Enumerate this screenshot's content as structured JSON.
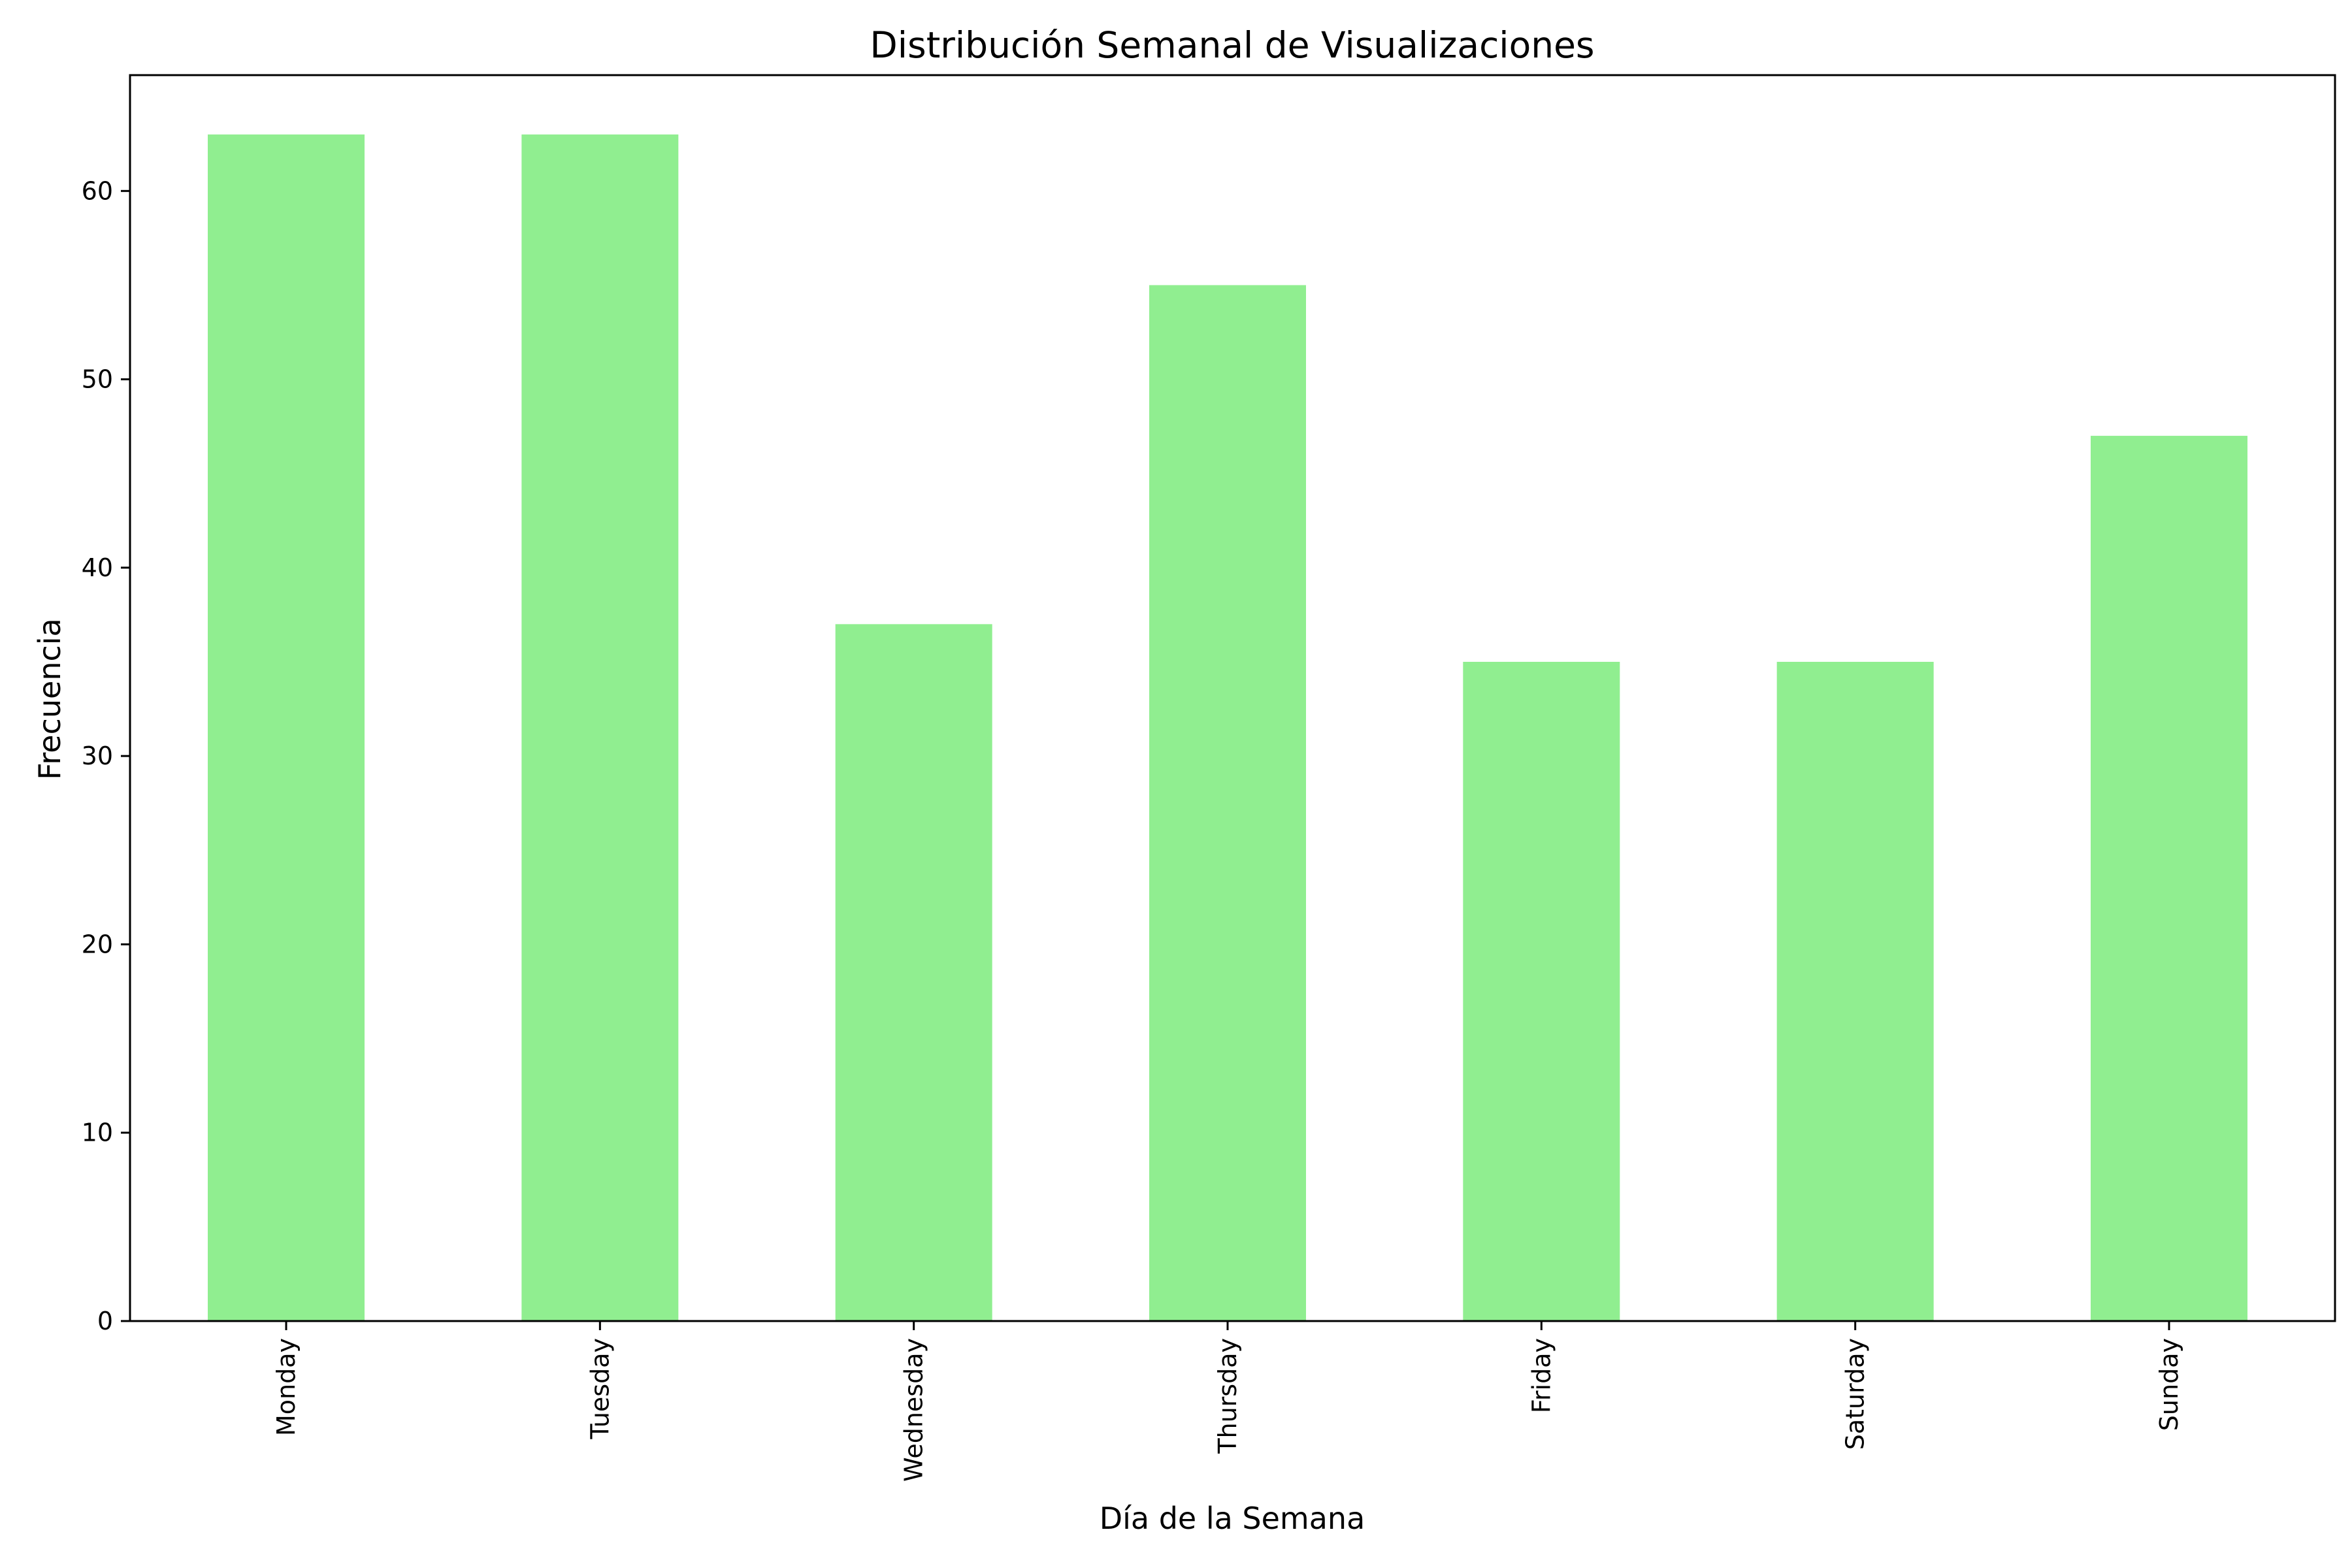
{
  "chart_data": {
    "type": "bar",
    "title": "Distribución Semanal de Visualizaciones",
    "xlabel": "Día de la Semana",
    "ylabel": "Frecuencia",
    "categories": [
      "Monday",
      "Tuesday",
      "Wednesday",
      "Thursday",
      "Friday",
      "Saturday",
      "Sunday"
    ],
    "values": [
      63,
      63,
      37,
      55,
      35,
      35,
      47
    ],
    "ylim": [
      0,
      66.15
    ],
    "yticks": [
      0,
      10,
      20,
      30,
      40,
      50,
      60
    ],
    "grid": false,
    "bar_color": "#90ee90"
  }
}
